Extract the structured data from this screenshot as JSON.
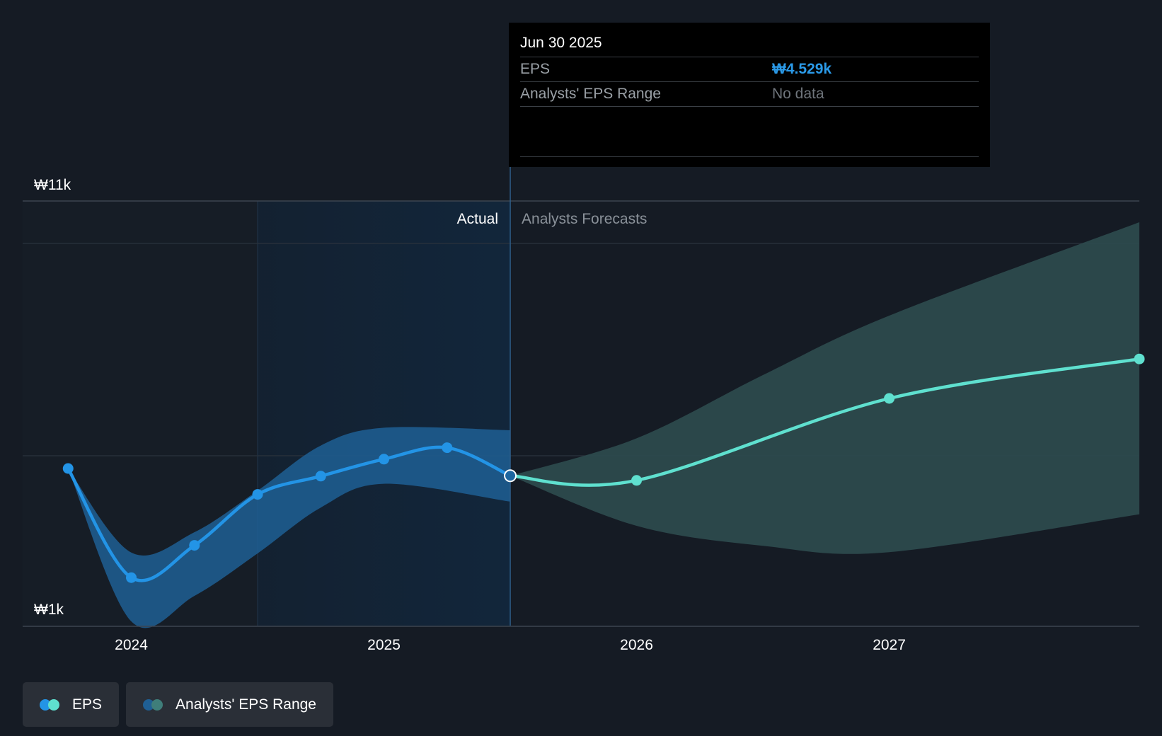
{
  "colors": {
    "eps_actual": "#2394e6",
    "eps_forecast": "#5fe0cf",
    "range_actual": "#1f5f94",
    "range_forecast": "#2c4a4d",
    "actual_band": "#12263b",
    "background": "#151b24"
  },
  "chart_data": {
    "type": "line",
    "x_unit": "year",
    "y_unit": "KRW",
    "xlim": [
      2023.57,
      2027.99
    ],
    "ylim": [
      1000,
      11000
    ],
    "y_tick_labels": [
      "₩11k",
      "₩1k"
    ],
    "x_tick_values": [
      2024,
      2025,
      2026,
      2027
    ],
    "x_tick_labels": [
      "2024",
      "2025",
      "2026",
      "2027"
    ],
    "gridlines_y": [
      10000,
      5000
    ],
    "forecast_start": 2025.5,
    "section_labels": {
      "actual": "Actual",
      "forecast": "Analysts Forecasts"
    },
    "series": [
      {
        "name": "EPS",
        "kind": "actual",
        "points": [
          {
            "x": 2023.75,
            "y": 4700
          },
          {
            "x": 2024.0,
            "y": 2130
          },
          {
            "x": 2024.25,
            "y": 2890
          },
          {
            "x": 2024.5,
            "y": 4090
          },
          {
            "x": 2024.75,
            "y": 4520
          },
          {
            "x": 2025.0,
            "y": 4920
          },
          {
            "x": 2025.25,
            "y": 5190
          },
          {
            "x": 2025.5,
            "y": 4529
          }
        ]
      },
      {
        "name": "EPS",
        "kind": "forecast",
        "points": [
          {
            "x": 2025.5,
            "y": 4529
          },
          {
            "x": 2026.0,
            "y": 4420
          },
          {
            "x": 2027.0,
            "y": 6350
          },
          {
            "x": 2027.99,
            "y": 7280
          }
        ]
      },
      {
        "name": "Analysts' EPS Range",
        "kind": "range_actual",
        "upper": [
          {
            "x": 2023.75,
            "y": 4700
          },
          {
            "x": 2024.0,
            "y": 2720
          },
          {
            "x": 2024.25,
            "y": 3200
          },
          {
            "x": 2024.5,
            "y": 4180
          },
          {
            "x": 2024.75,
            "y": 5240
          },
          {
            "x": 2025.0,
            "y": 5660
          },
          {
            "x": 2025.5,
            "y": 5600
          }
        ],
        "lower": [
          {
            "x": 2023.75,
            "y": 4700
          },
          {
            "x": 2024.0,
            "y": 1100
          },
          {
            "x": 2024.25,
            "y": 1700
          },
          {
            "x": 2024.5,
            "y": 2700
          },
          {
            "x": 2024.75,
            "y": 3780
          },
          {
            "x": 2025.0,
            "y": 4340
          },
          {
            "x": 2025.5,
            "y": 3920
          }
        ]
      },
      {
        "name": "Analysts' EPS Range",
        "kind": "range_forecast",
        "upper": [
          {
            "x": 2025.5,
            "y": 4529
          },
          {
            "x": 2026.0,
            "y": 5410
          },
          {
            "x": 2026.5,
            "y": 6900
          },
          {
            "x": 2027.0,
            "y": 8300
          },
          {
            "x": 2027.99,
            "y": 10500
          }
        ],
        "lower": [
          {
            "x": 2025.5,
            "y": 4529
          },
          {
            "x": 2026.0,
            "y": 3350
          },
          {
            "x": 2026.5,
            "y": 2880
          },
          {
            "x": 2027.0,
            "y": 2730
          },
          {
            "x": 2027.99,
            "y": 3620
          }
        ]
      }
    ]
  },
  "tooltip": {
    "date": "Jun 30 2025",
    "rows": [
      {
        "label": "EPS",
        "value": "₩4.529k"
      },
      {
        "label": "Analysts' EPS Range",
        "value": "No data"
      }
    ]
  },
  "legend": [
    {
      "label": "EPS"
    },
    {
      "label": "Analysts' EPS Range"
    }
  ]
}
